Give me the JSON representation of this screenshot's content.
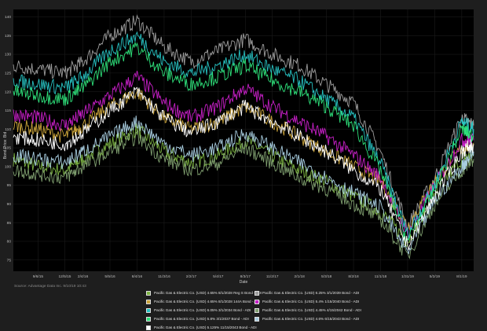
{
  "chart_data": {
    "type": "line",
    "title": "",
    "xlabel": "Date",
    "ylabel": "Bond Price: Bid",
    "ylim": [
      72,
      142
    ],
    "y_ticks": [
      75,
      80,
      85,
      90,
      95,
      100,
      105,
      110,
      115,
      120,
      125,
      130,
      135,
      140
    ],
    "x_ticks": [
      "9/6/15",
      "12/5/15",
      "2/4/16",
      "5/5/16",
      "8/4/16",
      "11/3/16",
      "2/2/17",
      "5/4/17",
      "8/3/17",
      "11/2/17",
      "2/1/18",
      "5/3/18",
      "8/2/18",
      "11/1/18",
      "1/31/19",
      "5/2/19",
      "8/1/19"
    ],
    "grid": true,
    "legend_position": "bottom",
    "source": "Source: Advantage Data Inc. 9/10/19 10:43",
    "x": [
      "6/15/15",
      "9/6/15",
      "12/5/15",
      "2/4/16",
      "5/5/16",
      "8/4/16",
      "11/3/16",
      "2/2/17",
      "5/4/17",
      "8/3/17",
      "11/2/17",
      "2/1/18",
      "5/3/18",
      "8/2/18",
      "11/1/18",
      "1/31/19",
      "5/2/19",
      "8/1/19",
      "9/10/19"
    ],
    "series": [
      {
        "name": "Pacific Gas & Electric Co. (USD) 4.65% 8/1/2028 Reg S Bond - ADI",
        "color": "#7cb342",
        "values": [
          102,
          100,
          99,
          102,
          106,
          110,
          104,
          101,
          103,
          107,
          103,
          99,
          96,
          92,
          88,
          80,
          93,
          102,
          103
        ]
      },
      {
        "name": "Pacific Gas & Electric Co. (USD) 6.25% 3/1/2039 Bond - ADI",
        "color": "#9e9e9e",
        "values": [
          127,
          126,
          125,
          128,
          135,
          139,
          132,
          128,
          131,
          134,
          130,
          127,
          122,
          117,
          104,
          84,
          97,
          113,
          111
        ]
      },
      {
        "name": "Pacific Gas & Electric Co. (USD) 4.65% 8/1/2028 144A Bond - ADI",
        "color": "#c8a23a",
        "values": [
          111,
          110,
          108,
          111,
          116,
          120,
          113,
          110,
          112,
          116,
          112,
          108,
          104,
          100,
          96,
          84,
          96,
          105,
          106
        ]
      },
      {
        "name": "Pacific Gas & Electric Co. (USD) 5.4% 1/15/2040 Bond - ADI",
        "color": "#c71fc7",
        "values": [
          114,
          113,
          111,
          114,
          119,
          124,
          117,
          113,
          116,
          121,
          116,
          112,
          108,
          103,
          97,
          82,
          95,
          107,
          107
        ]
      },
      {
        "name": "Pacific Gas & Electric Co. (USD) 6.05% 3/1/2034 Bond - ADI",
        "color": "#27c2c2",
        "values": [
          123,
          122,
          121,
          124,
          131,
          135,
          128,
          125,
          127,
          130,
          126,
          123,
          118,
          113,
          101,
          82,
          95,
          112,
          110
        ]
      },
      {
        "name": "Pacific Gas & Electric Co. (USD) 4.45% 4/15/2042 Bond - ADI",
        "color": "#7f9f6f",
        "values": [
          99,
          98,
          97,
          100,
          104,
          108,
          102,
          99,
          101,
          105,
          101,
          97,
          94,
          90,
          86,
          76,
          90,
          99,
          102
        ]
      },
      {
        "name": "Pacific Gas & Electric Co. (USD) 5.8% 3/1/2037 Bond - ADI",
        "color": "#2ee07a",
        "values": [
          120,
          119,
          118,
          121,
          128,
          132,
          125,
          122,
          124,
          127,
          123,
          120,
          116,
          111,
          99,
          80,
          94,
          110,
          108
        ]
      },
      {
        "name": "Pacific Gas & Electric Co. (USD) 4.6% 6/15/2043 Bond - ADI",
        "color": "#a8cde0",
        "values": [
          103,
          102,
          101,
          104,
          108,
          112,
          106,
          103,
          105,
          109,
          105,
          101,
          97,
          93,
          89,
          77,
          91,
          100,
          104
        ]
      },
      {
        "name": "Pacific Gas & Electric Co. (USD) 5.125% 11/15/2043 Bond - ADI",
        "color": "#ffffff",
        "values": [
          108,
          107,
          106,
          109,
          115,
          120,
          113,
          109,
          112,
          116,
          112,
          108,
          104,
          99,
          94,
          79,
          92,
          104,
          106
        ]
      }
    ]
  }
}
